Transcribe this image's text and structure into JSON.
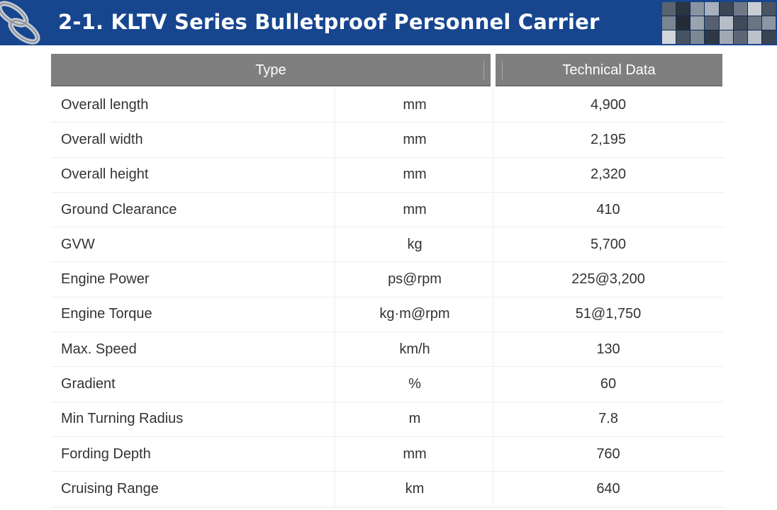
{
  "header": {
    "title": "2-1. KLTV Series Bulletproof Personnel Carrier",
    "background": "#17468f",
    "chain_icon": "chain-link-icon",
    "thumbnail_strip": "vehicle-photos-collage"
  },
  "table": {
    "columns": [
      "Type",
      "Technical Data"
    ],
    "header_color": "#7f7f7f",
    "rows": [
      {
        "item": "Overall length",
        "unit": "mm",
        "value": "4,900"
      },
      {
        "item": "Overall width",
        "unit": "mm",
        "value": "2,195"
      },
      {
        "item": "Overall height",
        "unit": "mm",
        "value": "2,320"
      },
      {
        "item": "Ground Clearance",
        "unit": "mm",
        "value": "410"
      },
      {
        "item": "GVW",
        "unit": "kg",
        "value": "5,700"
      },
      {
        "item": "Engine Power",
        "unit": "ps@rpm",
        "value": "225@3,200"
      },
      {
        "item": "Engine Torque",
        "unit": "kg·m@rpm",
        "value": "51@1,750"
      },
      {
        "item": "Max. Speed",
        "unit": "km/h",
        "value": "130"
      },
      {
        "item": "Gradient",
        "unit": "%",
        "value": "60"
      },
      {
        "item": "Min Turning Radius",
        "unit": "m",
        "value": "7.8"
      },
      {
        "item": "Fording Depth",
        "unit": "mm",
        "value": "760"
      },
      {
        "item": "Cruising Range",
        "unit": "km",
        "value": "640"
      }
    ]
  }
}
